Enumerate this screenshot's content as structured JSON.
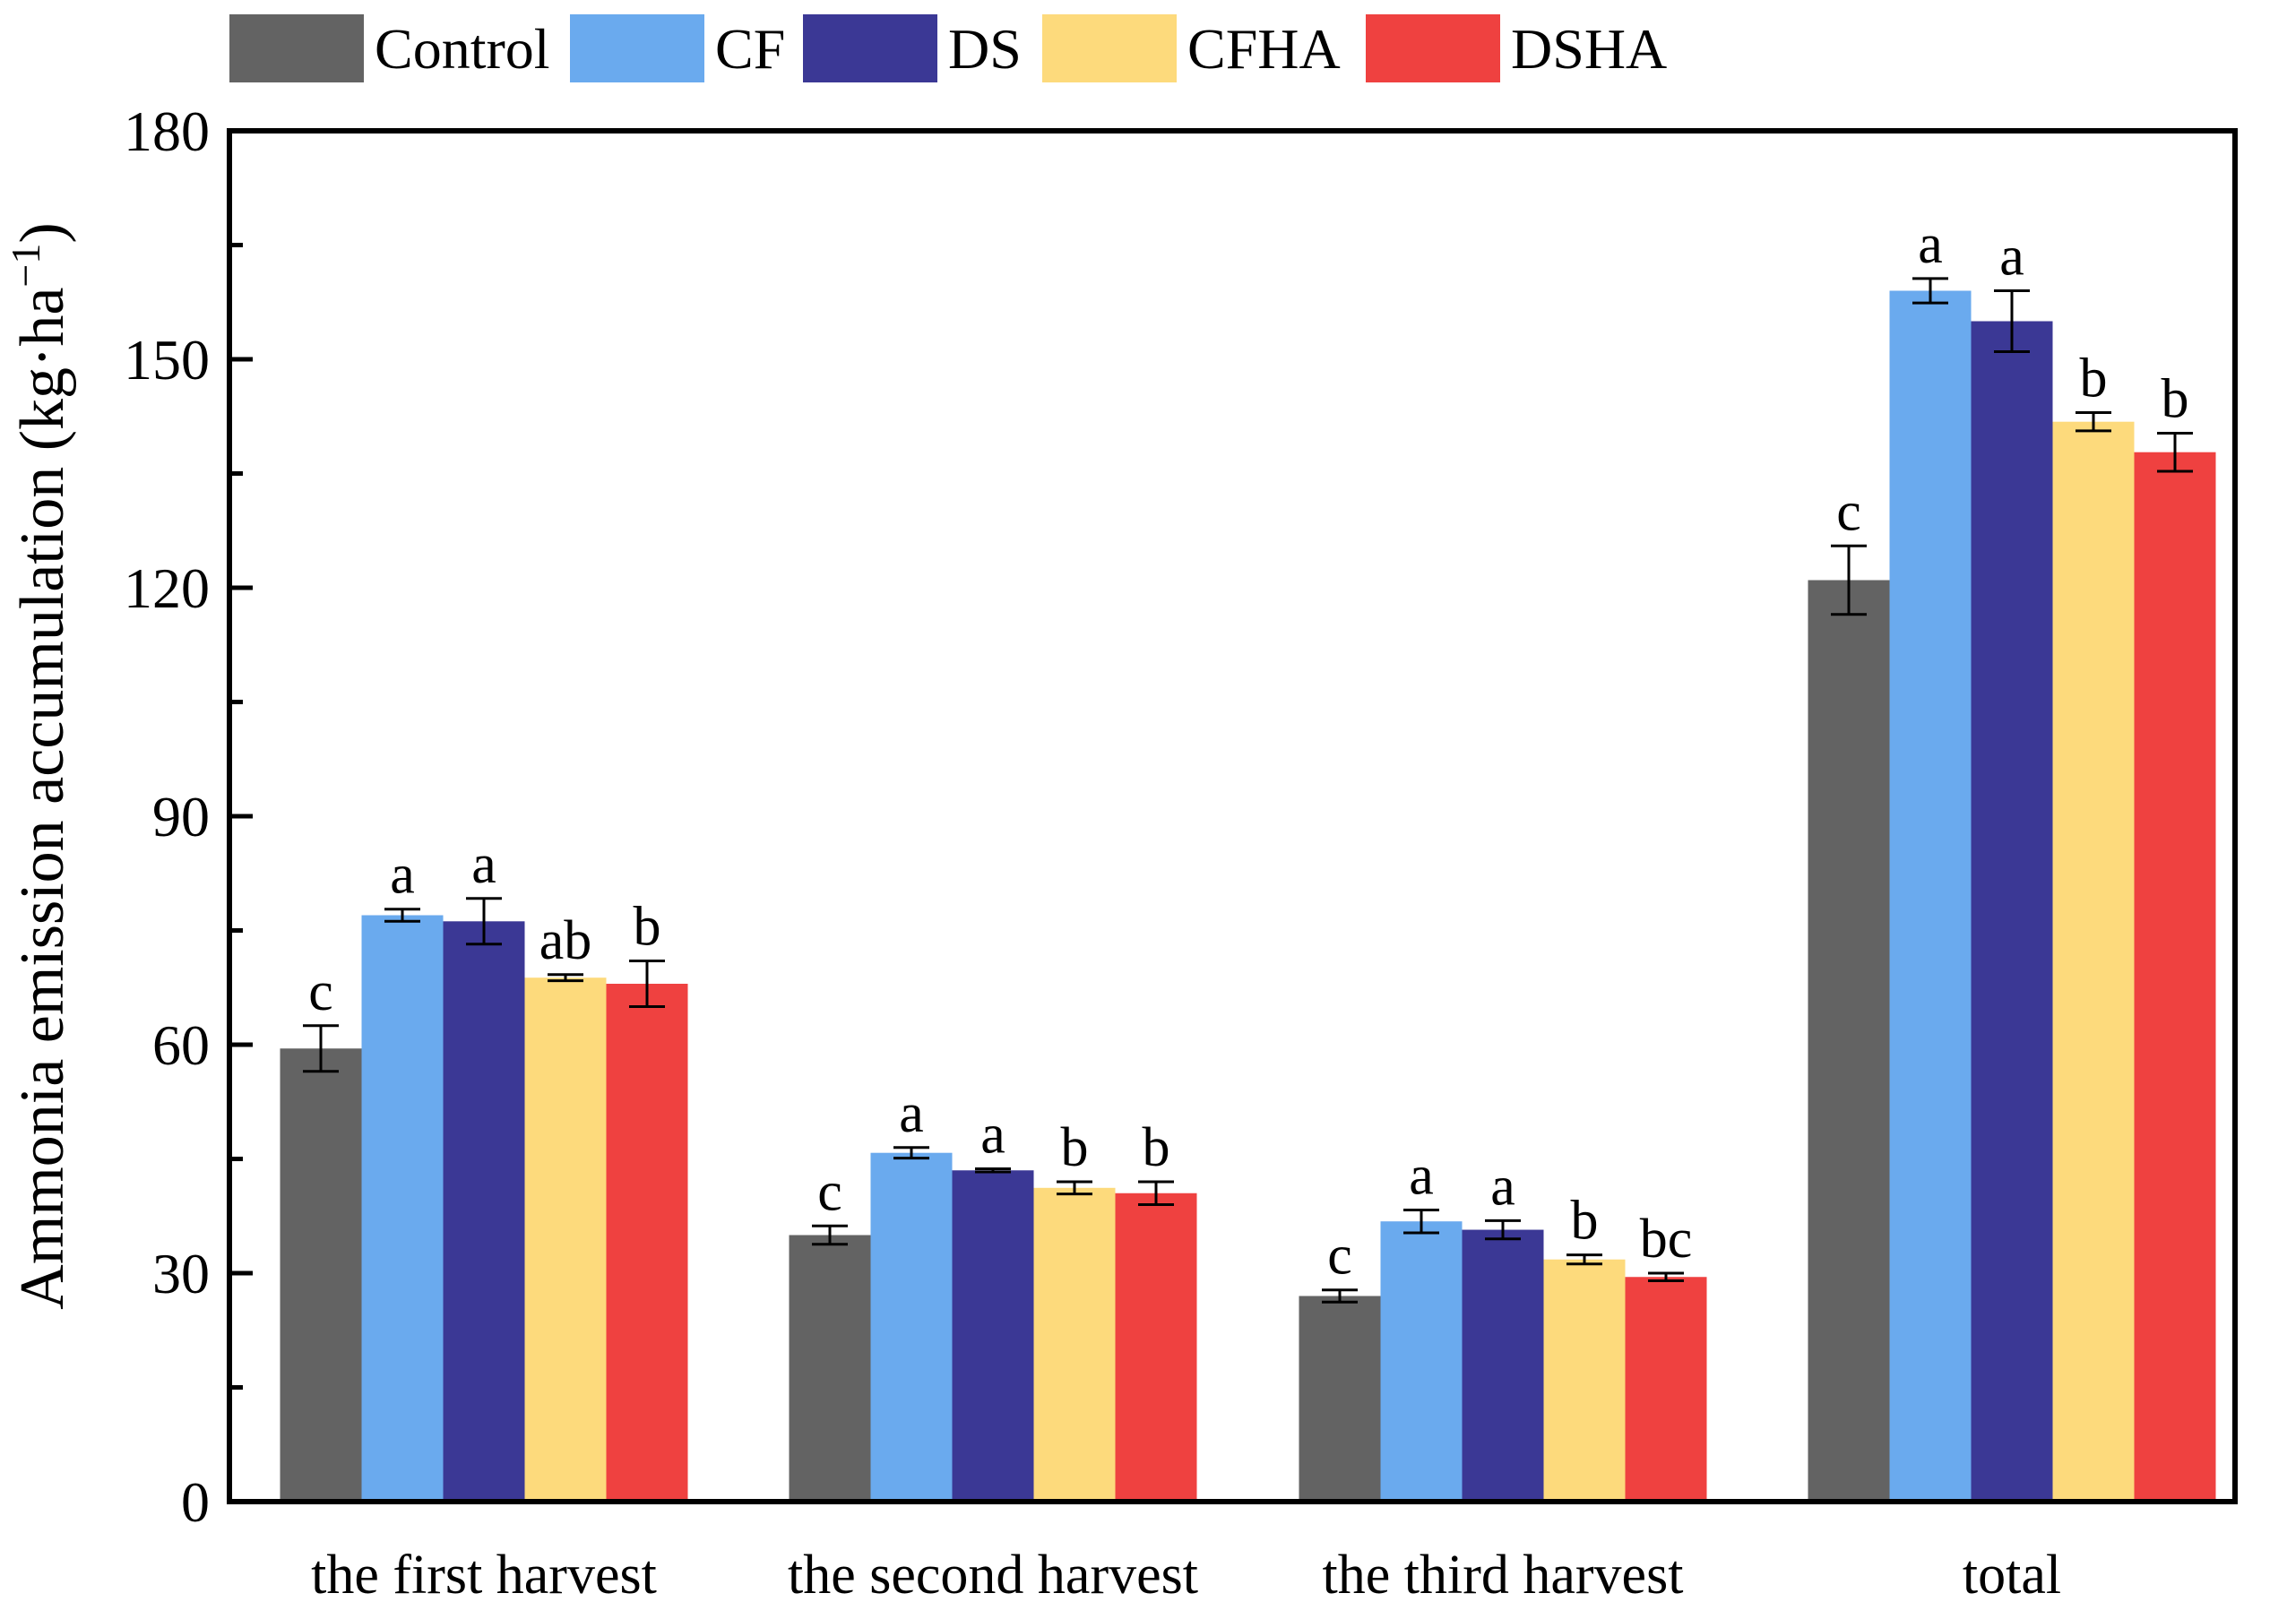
{
  "chart_data": {
    "type": "bar",
    "title": "",
    "xlabel": "",
    "ylabel": "Ammonia emission accumulation (kg·ha",
    "ylabel_superscript": "−1",
    "ylabel_close": ")",
    "ylim": [
      0,
      180
    ],
    "yticks": [
      0,
      30,
      60,
      90,
      120,
      150,
      180
    ],
    "yticks_minor": [
      15,
      45,
      75,
      105,
      135,
      165
    ],
    "grid": false,
    "legend_position": "top",
    "categories": [
      "the first harvest",
      "the second harvest",
      "the third harvest",
      "total"
    ],
    "series": [
      {
        "name": "Control",
        "color": "#636363",
        "values": [
          59.5,
          35.0,
          27.0,
          121.0
        ],
        "errors": [
          3.0,
          1.2,
          0.8,
          4.5
        ],
        "letters": [
          "c",
          "c",
          "c",
          "c"
        ]
      },
      {
        "name": "CF",
        "color": "#6aaaee",
        "values": [
          77.0,
          45.8,
          36.8,
          159.0
        ],
        "errors": [
          0.8,
          0.7,
          1.5,
          1.6
        ],
        "letters": [
          "a",
          "a",
          "a",
          "a"
        ]
      },
      {
        "name": "DS",
        "color": "#3b3895",
        "values": [
          76.2,
          43.5,
          35.7,
          155.0
        ],
        "errors": [
          3.0,
          0.2,
          1.2,
          4.0
        ],
        "letters": [
          "a",
          "a",
          "a",
          "a"
        ]
      },
      {
        "name": "CFHA",
        "color": "#fdda7c",
        "values": [
          68.8,
          41.2,
          31.8,
          141.8
        ],
        "errors": [
          0.4,
          0.8,
          0.6,
          1.2
        ],
        "letters": [
          "ab",
          "b",
          "b",
          "b"
        ]
      },
      {
        "name": "DSHA",
        "color": "#ef4140",
        "values": [
          68.0,
          40.5,
          29.5,
          137.8
        ],
        "errors": [
          3.0,
          1.5,
          0.5,
          2.5
        ],
        "letters": [
          "b",
          "b",
          "bc",
          "b"
        ]
      }
    ]
  }
}
